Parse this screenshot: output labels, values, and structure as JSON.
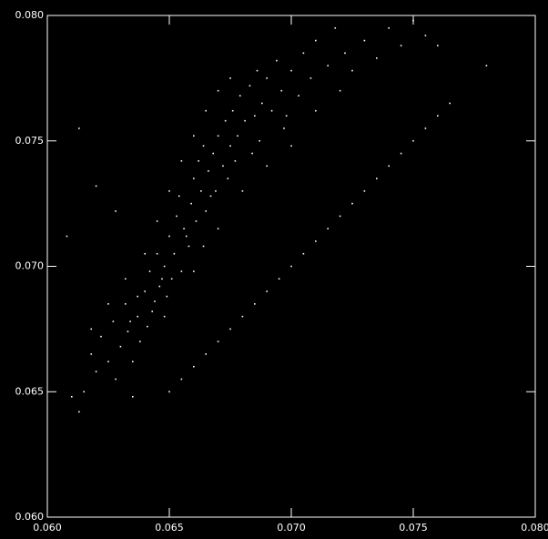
{
  "chart_data": {
    "type": "scatter",
    "color": "#ffffff",
    "xlim": [
      0.06,
      0.08
    ],
    "ylim": [
      0.06,
      0.08
    ],
    "xticks": [
      {
        "value": 0.06,
        "label": "0.060"
      },
      0.065,
      {
        "value": 0.07,
        "label": "0.070"
      },
      0.075,
      {
        "value": 0.08,
        "label": "0.080"
      }
    ],
    "yticks": [
      {
        "value": 0.06,
        "label": "0.060"
      },
      0.065,
      {
        "value": 0.07,
        "label": "0.070"
      },
      0.075,
      {
        "value": 0.08,
        "label": "0.080"
      }
    ],
    "x": [
      0.0615,
      0.062,
      0.0618,
      0.0625,
      0.0622,
      0.0628,
      0.063,
      0.0627,
      0.0633,
      0.0635,
      0.0632,
      0.0637,
      0.064,
      0.0638,
      0.0642,
      0.0643,
      0.0645,
      0.0646,
      0.0641,
      0.0648,
      0.065,
      0.0649,
      0.0652,
      0.0653,
      0.0655,
      0.0656,
      0.0654,
      0.0658,
      0.0659,
      0.066,
      0.0661,
      0.0663,
      0.0662,
      0.0665,
      0.0666,
      0.0664,
      0.0668,
      0.0669,
      0.067,
      0.0672,
      0.0673,
      0.0675,
      0.0676,
      0.0678,
      0.0679,
      0.0681,
      0.0683,
      0.0685,
      0.0686,
      0.0688,
      0.069,
      0.0692,
      0.0694,
      0.0696,
      0.0698,
      0.07,
      0.0703,
      0.0705,
      0.0708,
      0.071,
      0.0715,
      0.0718,
      0.0722,
      0.0725,
      0.073,
      0.0735,
      0.074,
      0.0745,
      0.075,
      0.0755,
      0.076,
      0.078,
      0.0613,
      0.062,
      0.0628,
      0.0608,
      0.061,
      0.0613,
      0.0635,
      0.0648,
      0.066,
      0.067,
      0.068,
      0.069,
      0.07,
      0.071,
      0.072,
      0.0645,
      0.065,
      0.0655,
      0.066,
      0.0665,
      0.067,
      0.0675,
      0.064,
      0.0632,
      0.0625,
      0.0618,
      0.0667,
      0.0657,
      0.0647,
      0.0637,
      0.0677,
      0.0687,
      0.0697,
      0.0684,
      0.0674,
      0.0664,
      0.0651,
      0.0644,
      0.0634,
      0.065,
      0.0655,
      0.066,
      0.0665,
      0.067,
      0.0675,
      0.068,
      0.0685,
      0.069,
      0.0695,
      0.07,
      0.0705,
      0.071,
      0.0715,
      0.072,
      0.0725,
      0.073,
      0.0735,
      0.074,
      0.0745,
      0.075,
      0.0755,
      0.076,
      0.0765
    ],
    "y": [
      0.065,
      0.0658,
      0.0665,
      0.0662,
      0.0672,
      0.0655,
      0.0668,
      0.0678,
      0.0674,
      0.0662,
      0.0685,
      0.068,
      0.069,
      0.067,
      0.0698,
      0.0682,
      0.0705,
      0.0692,
      0.0676,
      0.07,
      0.0712,
      0.0688,
      0.0705,
      0.072,
      0.0698,
      0.0715,
      0.0728,
      0.0708,
      0.0725,
      0.0735,
      0.0718,
      0.073,
      0.0742,
      0.0722,
      0.0738,
      0.0748,
      0.0745,
      0.073,
      0.0752,
      0.074,
      0.0758,
      0.0748,
      0.0762,
      0.0752,
      0.0768,
      0.0758,
      0.0772,
      0.076,
      0.0778,
      0.0765,
      0.0775,
      0.0762,
      0.0782,
      0.077,
      0.076,
      0.0778,
      0.0768,
      0.0785,
      0.0775,
      0.079,
      0.078,
      0.0795,
      0.0785,
      0.0778,
      0.079,
      0.0783,
      0.0795,
      0.0788,
      0.0798,
      0.0792,
      0.0788,
      0.078,
      0.0755,
      0.0732,
      0.0722,
      0.0712,
      0.0648,
      0.0642,
      0.0648,
      0.068,
      0.0698,
      0.0715,
      0.073,
      0.074,
      0.0748,
      0.0762,
      0.077,
      0.0718,
      0.073,
      0.0742,
      0.0752,
      0.0762,
      0.077,
      0.0775,
      0.0705,
      0.0695,
      0.0685,
      0.0675,
      0.0728,
      0.0712,
      0.0695,
      0.0688,
      0.0742,
      0.075,
      0.0755,
      0.0745,
      0.0735,
      0.0708,
      0.0695,
      0.0686,
      0.0678,
      0.065,
      0.0655,
      0.066,
      0.0665,
      0.067,
      0.0675,
      0.068,
      0.0685,
      0.069,
      0.0695,
      0.07,
      0.0705,
      0.071,
      0.0715,
      0.072,
      0.0725,
      0.073,
      0.0735,
      0.074,
      0.0745,
      0.075,
      0.0755,
      0.076,
      0.0765
    ]
  }
}
